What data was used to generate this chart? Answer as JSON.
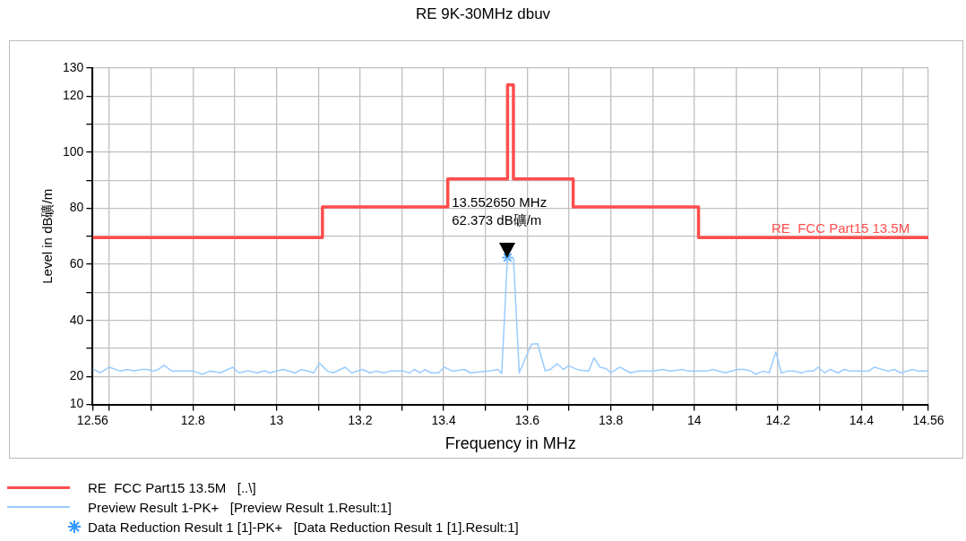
{
  "chart_data": {
    "type": "line",
    "title": "RE 9K-30MHz dbuv",
    "xlabel": "Frequency in MHz",
    "ylabel": "Level in dB礦/m",
    "xlim": [
      12.56,
      14.56
    ],
    "xticks": [
      12.56,
      {
        "value": 12.6,
        "label": null
      },
      {
        "value": 12.7,
        "label": null
      },
      12.8,
      {
        "value": 12.9,
        "label": null
      },
      13,
      {
        "value": 13.1,
        "label": null
      },
      13.2,
      {
        "value": 13.3,
        "label": null
      },
      13.4,
      {
        "value": 13.5,
        "label": null
      },
      13.6,
      {
        "value": 13.7,
        "label": null
      },
      13.8,
      {
        "value": 13.9,
        "label": null
      },
      14,
      {
        "value": 14.1,
        "label": null
      },
      14.2,
      {
        "value": 14.3,
        "label": null
      },
      14.4,
      {
        "value": 14.5,
        "label": null
      },
      14.56
    ],
    "ylim": [
      10,
      130
    ],
    "yticks": [
      10,
      20,
      {
        "value": 30,
        "label": null
      },
      40,
      {
        "value": 50,
        "label": null
      },
      60,
      {
        "value": 70,
        "label": null
      },
      80,
      {
        "value": 90,
        "label": null
      },
      100,
      {
        "value": 110,
        "label": null
      },
      120,
      130
    ],
    "grid": true,
    "legend": "bottom",
    "line_style": "solid",
    "series": [
      {
        "name": "RE  FCC Part15 13.5M   [..\\]",
        "type": "step",
        "color": "#ff4d4d",
        "x": [
          12.56,
          13.11,
          13.41,
          13.553,
          13.567,
          13.71,
          14.01,
          14.56
        ],
        "values": [
          69.5,
          80.5,
          90.5,
          124,
          90.5,
          80.5,
          69.5,
          69.5
        ]
      },
      {
        "name": "Preview Result 1-PK+   [Preview Result 1.Result:1]",
        "type": "line",
        "color": "#99ccff",
        "x": [
          12.56,
          12.578,
          12.6,
          12.626,
          12.644,
          12.658,
          12.677,
          12.691,
          12.706,
          12.717,
          12.731,
          12.75,
          12.801,
          12.823,
          12.841,
          12.866,
          12.895,
          12.91,
          12.932,
          12.954,
          12.972,
          12.983,
          13.016,
          13.045,
          13.06,
          13.089,
          13.103,
          13.122,
          13.136,
          13.164,
          13.18,
          13.206,
          13.224,
          13.238,
          13.257,
          13.271,
          13.304,
          13.319,
          13.33,
          13.344,
          13.355,
          13.37,
          13.388,
          13.402,
          13.421,
          13.45,
          13.464,
          13.508,
          13.53,
          13.539,
          13.5527,
          13.567,
          13.581,
          13.61,
          13.625,
          13.643,
          13.654,
          13.672,
          13.687,
          13.699,
          13.723,
          13.747,
          13.76,
          13.774,
          13.789,
          13.8,
          13.822,
          13.847,
          13.866,
          13.902,
          13.924,
          13.942,
          13.971,
          13.986,
          14.03,
          14.044,
          14.074,
          14.103,
          14.121,
          14.136,
          14.146,
          14.165,
          14.179,
          14.195,
          14.208,
          14.223,
          14.238,
          14.256,
          14.271,
          14.285,
          14.296,
          14.312,
          14.325,
          14.344,
          14.358,
          14.373,
          14.417,
          14.431,
          14.464,
          14.478,
          14.494,
          14.522,
          14.537,
          14.56
        ],
        "values": [
          22.8,
          21.3,
          23.3,
          21.9,
          22.5,
          22.0,
          22.5,
          22.5,
          21.9,
          22.5,
          24.0,
          21.9,
          21.9,
          20.8,
          21.9,
          21.3,
          23.3,
          21.3,
          22.0,
          21.3,
          22.0,
          21.3,
          22.5,
          21.3,
          22.5,
          21.3,
          24.7,
          21.9,
          21.3,
          23.3,
          21.3,
          22.5,
          21.3,
          21.9,
          21.3,
          21.9,
          21.9,
          21.3,
          22.5,
          21.3,
          22.5,
          21.3,
          21.3,
          23.3,
          21.9,
          22.5,
          21.3,
          21.9,
          22.5,
          21.1,
          62.3,
          62.3,
          21.3,
          31.5,
          31.7,
          22.0,
          22.4,
          24.5,
          22.5,
          23.8,
          22.3,
          21.9,
          26.7,
          23.3,
          22.8,
          21.3,
          23.3,
          21.3,
          21.9,
          21.9,
          22.5,
          21.9,
          22.5,
          21.9,
          21.9,
          22.5,
          21.3,
          22.5,
          22.5,
          21.9,
          20.8,
          21.9,
          21.3,
          28.7,
          21.3,
          21.9,
          21.9,
          21.3,
          21.9,
          21.9,
          23.3,
          21.3,
          22.5,
          21.3,
          22.5,
          21.9,
          21.9,
          23.3,
          21.9,
          22.5,
          21.3,
          22.5,
          21.9,
          21.9
        ]
      },
      {
        "name": "Data Reduction Result 1 [1]-PK+   [Data Reduction Result 1 [1].Result:1]",
        "type": "scatter",
        "marker": "cross",
        "color": "#3399ff",
        "x": [
          13.553
        ],
        "values": [
          62.4
        ]
      }
    ],
    "annotations": [
      {
        "text": "13.552650 MHz\n62.373 dB礦/m",
        "x": 13.55265,
        "y": 62.373
      },
      {
        "text": "RE  FCC Part15 13.5M",
        "x": 14.35,
        "y": 69.5
      }
    ]
  }
}
